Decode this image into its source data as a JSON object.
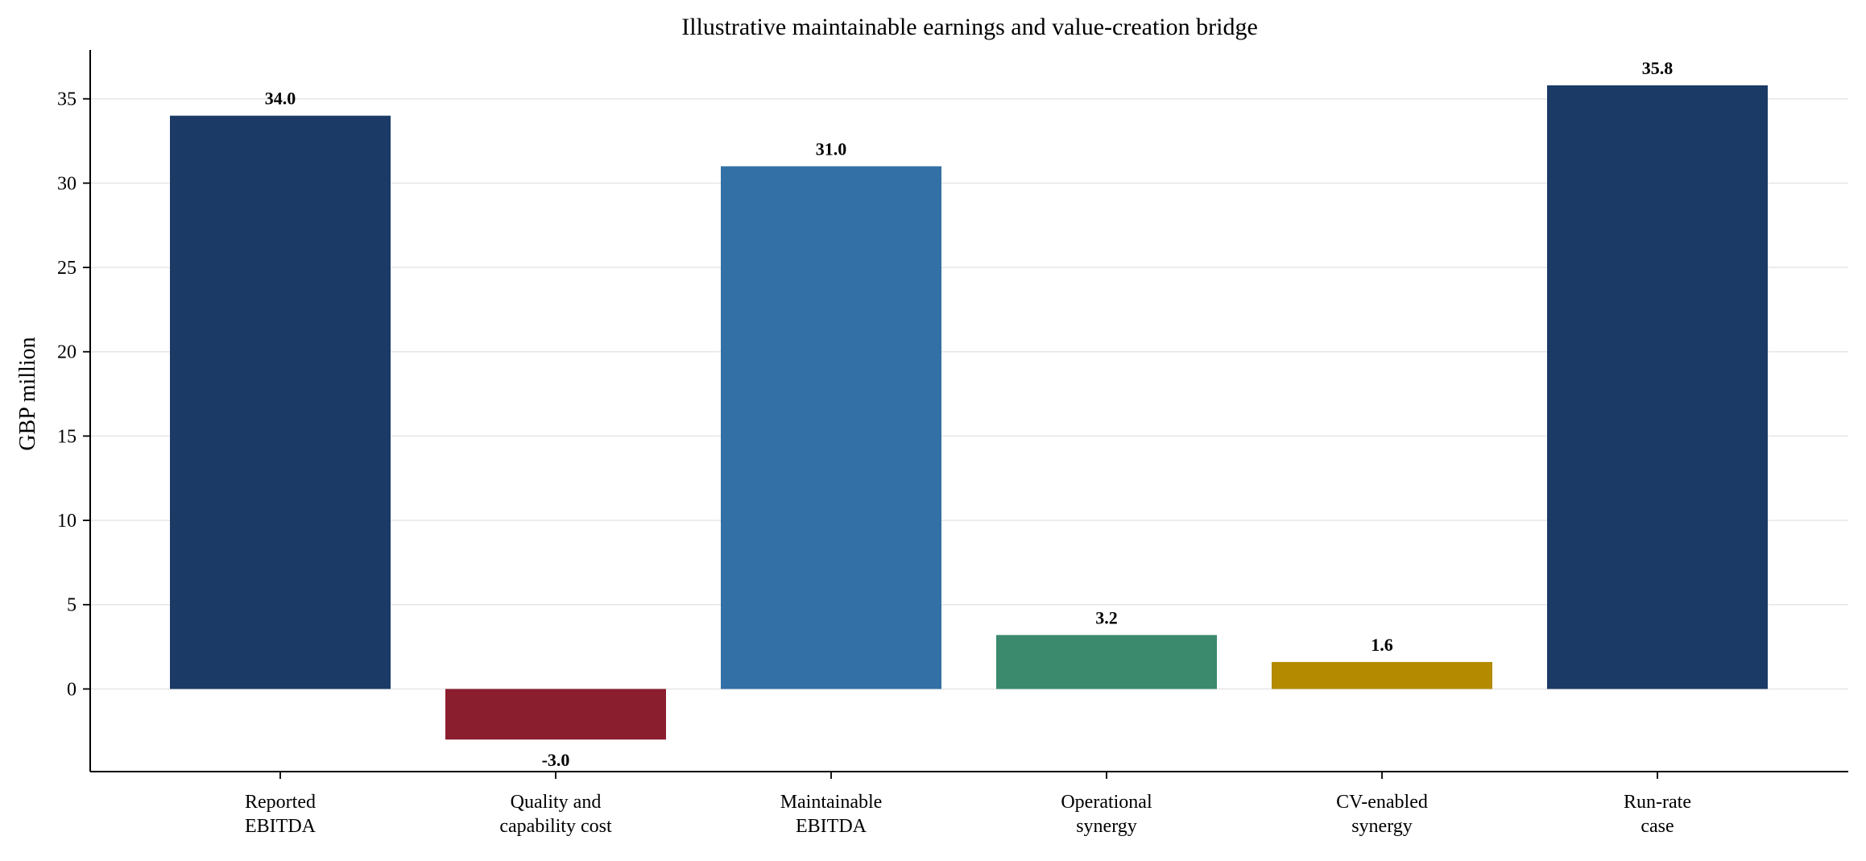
{
  "chart_data": {
    "type": "bar",
    "title": "Illustrative maintainable earnings and value-creation bridge",
    "xlabel": "",
    "ylabel": "GBP million",
    "categories": [
      [
        "Reported",
        "EBITDA"
      ],
      [
        "Quality and",
        "capability cost"
      ],
      [
        "Maintainable",
        "EBITDA"
      ],
      [
        "Operational",
        "synergy"
      ],
      [
        "CV-enabled",
        "synergy"
      ],
      [
        "Run-rate",
        "case"
      ]
    ],
    "values": [
      34.0,
      -3.0,
      31.0,
      3.2,
      1.6,
      35.8
    ],
    "value_labels": [
      "34.0",
      "-3.0",
      "31.0",
      "3.2",
      "1.6",
      "35.8"
    ],
    "bar_colors": [
      "#1b3a66",
      "#8b1e2e",
      "#3270a5",
      "#3b8a6e",
      "#b38a00",
      "#1b3a66"
    ],
    "ylim": [
      -4.9,
      37.9
    ],
    "yticks": [
      0,
      5,
      10,
      15,
      20,
      25,
      30,
      35
    ],
    "grid": "horizontal",
    "legend": "none"
  }
}
